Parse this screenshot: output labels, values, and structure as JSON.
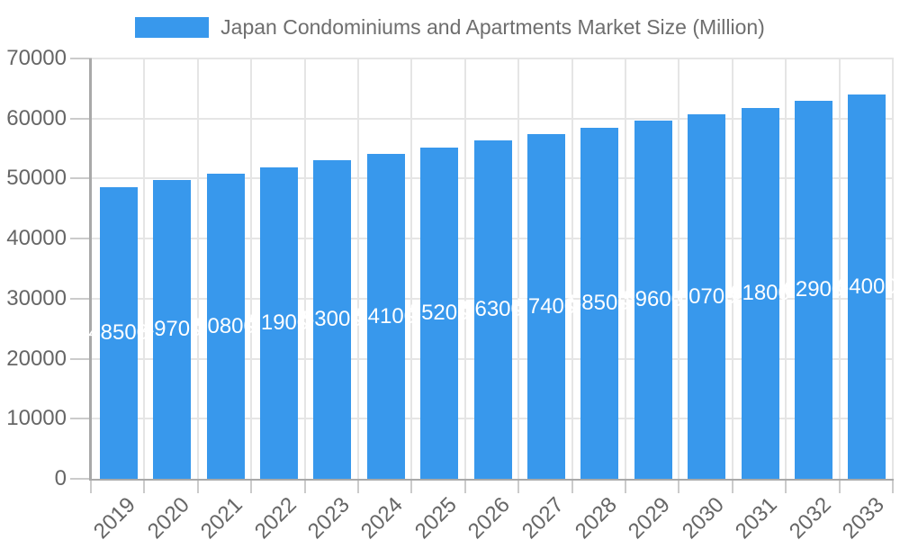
{
  "legend": {
    "label": "Japan Condominiums and Apartments Market Size (Million)"
  },
  "chart_data": {
    "type": "bar",
    "title": "Japan Condominiums and Apartments Market Size (Million)",
    "categories": [
      "2019",
      "2020",
      "2021",
      "2022",
      "2023",
      "2024",
      "2025",
      "2026",
      "2027",
      "2028",
      "2029",
      "2030",
      "2031",
      "2032",
      "2033"
    ],
    "values": [
      48500,
      49700,
      50800,
      51900,
      53000,
      54100,
      55200,
      56300,
      57400,
      58500,
      59600,
      60700,
      61800,
      62900,
      64000
    ],
    "xlabel": "",
    "ylabel": "",
    "ylim": [
      0,
      70000
    ],
    "yticks": [
      0,
      10000,
      20000,
      30000,
      40000,
      50000,
      60000,
      70000
    ],
    "grid": true,
    "legend_position": "top",
    "colors": {
      "bar": "#3898ec",
      "bar_value_label": "#ffffff",
      "axis_text": "#666666",
      "legend_text": "#6e6e6e",
      "grid_line": "#e5e5e5",
      "axis_line": "#a9a9a9",
      "tick_mark": "#cbcbcb"
    }
  }
}
